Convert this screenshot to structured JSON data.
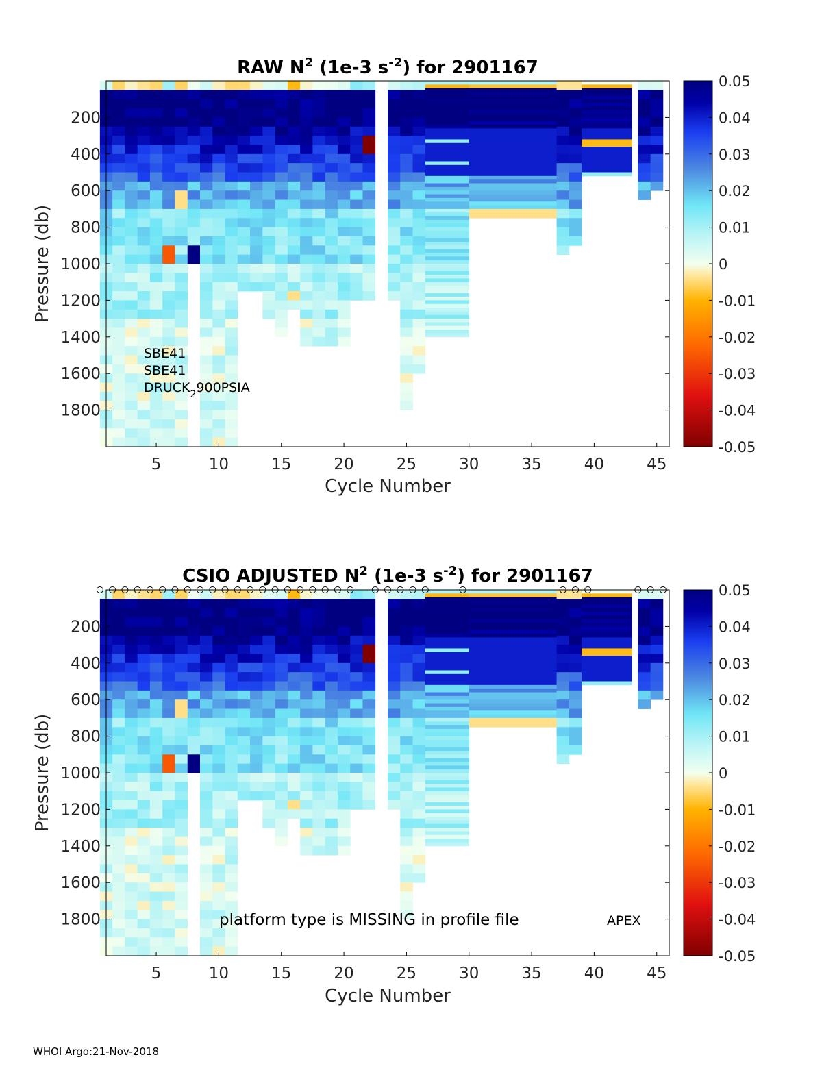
{
  "chart_data": [
    {
      "type": "heatmap",
      "title": "RAW N² (1e-3 s⁻²) for 2901167",
      "title_parts": {
        "pre": "RAW N",
        "sup1": "2",
        "mid": " (1e-3 s",
        "sup2": "-2",
        "post": ") for 2901167"
      },
      "xlabel": "Cycle Number",
      "ylabel": "Pressure (db)",
      "xlim": [
        1,
        46
      ],
      "ylim": [
        2000,
        0
      ],
      "xticks": [
        5,
        10,
        15,
        20,
        25,
        30,
        35,
        40,
        45
      ],
      "yticks": [
        200,
        400,
        600,
        800,
        1000,
        1200,
        1400,
        1600,
        1800
      ],
      "colorbar": {
        "min": -0.05,
        "max": 0.05,
        "ticks": [
          "0.05",
          "0.04",
          "0.03",
          "0.02",
          "0.01",
          "0",
          "-0.01",
          "-0.02",
          "-0.03",
          "-0.04",
          "-0.05"
        ]
      },
      "annotations": [
        "SBE41",
        "SBE41",
        "DRUCK",
        "2",
        "900PSIA"
      ],
      "cycles": [
        {
          "x": 1,
          "w": 1,
          "max": 2000
        },
        {
          "x": 2,
          "w": 1,
          "max": 2000
        },
        {
          "x": 3,
          "w": 1,
          "max": 2000
        },
        {
          "x": 4,
          "w": 1,
          "max": 2000
        },
        {
          "x": 5,
          "w": 1,
          "max": 2000
        },
        {
          "x": 6,
          "w": 1,
          "max": 2000
        },
        {
          "x": 7,
          "w": 1,
          "max": 2000
        },
        {
          "x": 8,
          "w": 1,
          "max": 1000
        },
        {
          "x": 9,
          "w": 1,
          "max": 2000
        },
        {
          "x": 10,
          "w": 1,
          "max": 2000
        },
        {
          "x": 11,
          "w": 1,
          "max": 2000
        },
        {
          "x": 12,
          "w": 1,
          "max": 1150
        },
        {
          "x": 13,
          "w": 1,
          "max": 1150
        },
        {
          "x": 14,
          "w": 1,
          "max": 1300
        },
        {
          "x": 15,
          "w": 1,
          "max": 1400
        },
        {
          "x": 16,
          "w": 1,
          "max": 1250
        },
        {
          "x": 17,
          "w": 1,
          "max": 1450
        },
        {
          "x": 18,
          "w": 1,
          "max": 1450
        },
        {
          "x": 19,
          "w": 1,
          "max": 1450
        },
        {
          "x": 20,
          "w": 1,
          "max": 1450
        },
        {
          "x": 21,
          "w": 1,
          "max": 1200
        },
        {
          "x": 22,
          "w": 1,
          "max": 1200
        },
        {
          "x": 24,
          "w": 1,
          "max": 1200
        },
        {
          "x": 25,
          "w": 1,
          "max": 1800
        },
        {
          "x": 26,
          "w": 1,
          "max": 1600
        },
        {
          "x": 27,
          "w": 3.5,
          "max": 1400
        },
        {
          "x": 30.5,
          "w": 7,
          "max": 750
        },
        {
          "x": 37.5,
          "w": 1,
          "max": 950
        },
        {
          "x": 38.5,
          "w": 1,
          "max": 900
        },
        {
          "x": 39.5,
          "w": 4,
          "max": 520
        },
        {
          "x": 44,
          "w": 1,
          "max": 650
        },
        {
          "x": 45,
          "w": 1,
          "max": 600
        }
      ]
    },
    {
      "type": "heatmap",
      "title": "CSIO  ADJUSTED N² (1e-3 s⁻²) for 2901167",
      "title_parts": {
        "pre": "CSIO  ADJUSTED N",
        "sup1": "2",
        "mid": " (1e-3 s",
        "sup2": "-2",
        "post": ") for 2901167"
      },
      "xlabel": "Cycle Number",
      "ylabel": "Pressure (db)",
      "xlim": [
        1,
        46
      ],
      "ylim": [
        2000,
        0
      ],
      "xticks": [
        5,
        10,
        15,
        20,
        25,
        30,
        35,
        40,
        45
      ],
      "yticks": [
        200,
        400,
        600,
        800,
        1000,
        1200,
        1400,
        1600,
        1800
      ],
      "colorbar": {
        "min": -0.05,
        "max": 0.05,
        "ticks": [
          "0.05",
          "0.04",
          "0.03",
          "0.02",
          "0.01",
          "0",
          "-0.01",
          "-0.02",
          "-0.03",
          "-0.04",
          "-0.05"
        ]
      },
      "annotations": [
        "platform type is MISSING in profile file",
        "APEX"
      ],
      "qc_markers": [
        1,
        2,
        3,
        4,
        5,
        6,
        7,
        8,
        9,
        10,
        11,
        12,
        13,
        14,
        15,
        16,
        17,
        18,
        19,
        20,
        21,
        23,
        24,
        25,
        26,
        27,
        30,
        38,
        39,
        40,
        44,
        45,
        46
      ],
      "cycles": "same as RAW panel"
    }
  ],
  "footer": "WHOI Argo:21-Nov-2018"
}
